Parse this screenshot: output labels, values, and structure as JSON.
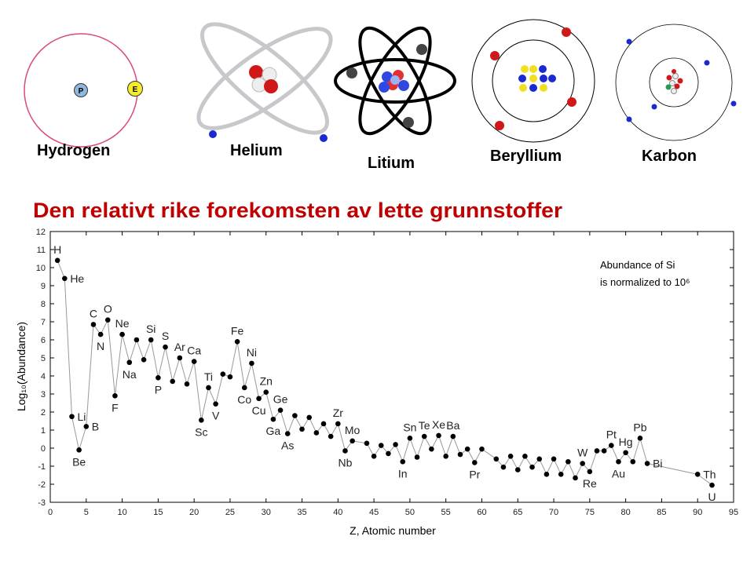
{
  "atoms": [
    "Hydrogen",
    "Helium",
    "Litium",
    "Beryllium",
    "Karbon"
  ],
  "hydrogen_parts": [
    "P",
    "E"
  ],
  "chart_data": {
    "type": "scatter",
    "title": "Den relativt rike forekomsten av lette grunnstoffer",
    "x_label": "Z, Atomic number",
    "y_label": "Log₁₀(Abundance)",
    "annotation": [
      "Abundance of Si",
      "is normalized to 10⁶"
    ],
    "xlim": [
      0,
      95
    ],
    "ylim": [
      -3,
      12
    ],
    "xticks": [
      0,
      5,
      10,
      15,
      20,
      25,
      30,
      35,
      40,
      45,
      50,
      55,
      60,
      65,
      70,
      75,
      80,
      85,
      90,
      95
    ],
    "yticks": [
      -3,
      -2,
      -1,
      0,
      1,
      2,
      3,
      4,
      5,
      6,
      7,
      8,
      9,
      10,
      11,
      12
    ],
    "color": "#000000",
    "line_color": "#999999",
    "x": [
      1,
      2,
      3,
      4,
      5,
      6,
      7,
      8,
      9,
      10,
      11,
      12,
      13,
      14,
      15,
      16,
      17,
      18,
      19,
      20,
      21,
      22,
      23,
      24,
      25,
      26,
      27,
      28,
      29,
      30,
      31,
      32,
      33,
      34,
      35,
      36,
      37,
      38,
      39,
      40,
      41,
      42,
      44,
      45,
      46,
      47,
      48,
      49,
      50,
      51,
      52,
      53,
      54,
      55,
      56,
      57,
      58,
      59,
      60,
      62,
      63,
      64,
      65,
      66,
      67,
      68,
      69,
      70,
      71,
      72,
      73,
      74,
      75,
      76,
      77,
      78,
      79,
      80,
      81,
      82,
      83,
      90,
      92
    ],
    "values": [
      10.4,
      9.4,
      1.75,
      -0.1,
      1.2,
      6.85,
      6.3,
      7.1,
      2.9,
      6.3,
      4.75,
      6.0,
      4.9,
      6.0,
      3.9,
      5.6,
      3.7,
      5.0,
      3.55,
      4.8,
      1.55,
      3.35,
      2.45,
      4.1,
      3.95,
      5.9,
      3.35,
      4.7,
      2.75,
      3.1,
      1.6,
      2.1,
      0.8,
      1.8,
      1.05,
      1.7,
      0.85,
      1.35,
      0.65,
      1.35,
      -0.15,
      0.4,
      0.27,
      -0.45,
      0.15,
      -0.3,
      0.2,
      -0.75,
      0.55,
      -0.5,
      0.65,
      -0.05,
      0.7,
      -0.45,
      0.65,
      -0.35,
      -0.05,
      -0.8,
      -0.05,
      -0.6,
      -1.05,
      -0.45,
      -1.2,
      -0.45,
      -1.05,
      -0.6,
      -1.45,
      -0.6,
      -1.45,
      -0.75,
      -1.65,
      -0.85,
      -1.3,
      -0.15,
      -0.15,
      0.15,
      -0.75,
      -0.25,
      -0.75,
      0.55,
      -0.85,
      -1.45,
      -2.05
    ],
    "labels": [
      "H",
      "He",
      "Li",
      "Be",
      "B",
      "C",
      "N",
      "O",
      "F",
      "Ne",
      "Na",
      null,
      null,
      "Si",
      "P",
      "S",
      null,
      "Ar",
      null,
      "Ca",
      "Sc",
      "Ti",
      "V",
      null,
      null,
      "Fe",
      "Co",
      "Ni",
      "Cu",
      "Zn",
      "Ga",
      "Ge",
      "As",
      null,
      null,
      null,
      null,
      null,
      null,
      "Zr",
      "Nb",
      "Mo",
      null,
      null,
      null,
      null,
      null,
      "In",
      "Sn",
      null,
      "Te",
      null,
      "Xe",
      null,
      "Ba",
      null,
      null,
      "Pr",
      null,
      null,
      null,
      null,
      null,
      null,
      null,
      null,
      null,
      null,
      null,
      null,
      null,
      "W",
      "Re",
      null,
      null,
      "Pt",
      "Au",
      "Hg",
      null,
      "Pb",
      "Bi",
      "Th",
      "U"
    ]
  }
}
